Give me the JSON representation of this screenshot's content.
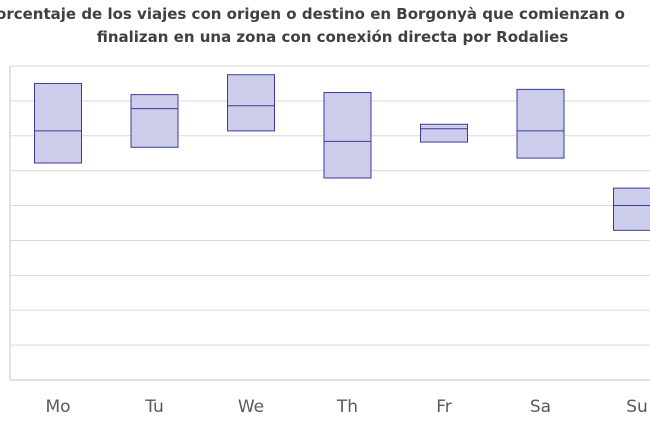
{
  "chart_data": {
    "type": "box",
    "title_lines": [
      "Porcentaje de los viajes con origen o destino en Borgonyà que comienzan o",
      "finalizan en una zona con conexión directa por Rodalies"
    ],
    "categories": [
      "Mo",
      "Tu",
      "We",
      "Th",
      "Fr",
      "Sa",
      "Su"
    ],
    "boxes": [
      {
        "low": 62.2,
        "mid": 71.4,
        "high": 85.0
      },
      {
        "low": 66.7,
        "mid": 77.8,
        "high": 81.8
      },
      {
        "low": 71.4,
        "mid": 78.6,
        "high": 87.5
      },
      {
        "low": 57.9,
        "mid": 68.4,
        "high": 82.4
      },
      {
        "low": 68.2,
        "mid": 72.0,
        "high": 73.3
      },
      {
        "low": 63.6,
        "mid": 71.4,
        "high": 83.3
      },
      {
        "low": 42.9,
        "mid": 50.0,
        "high": 55.0
      }
    ],
    "ylim": [
      0,
      90
    ],
    "y_gridlines": [
      10,
      20,
      30,
      40,
      50,
      60,
      70,
      80,
      90
    ],
    "colors": {
      "box_fill": "#cccceb",
      "box_stroke": "#3b3b9c",
      "grid": "#d9d9d9",
      "axis": "#d9d9d9"
    }
  }
}
